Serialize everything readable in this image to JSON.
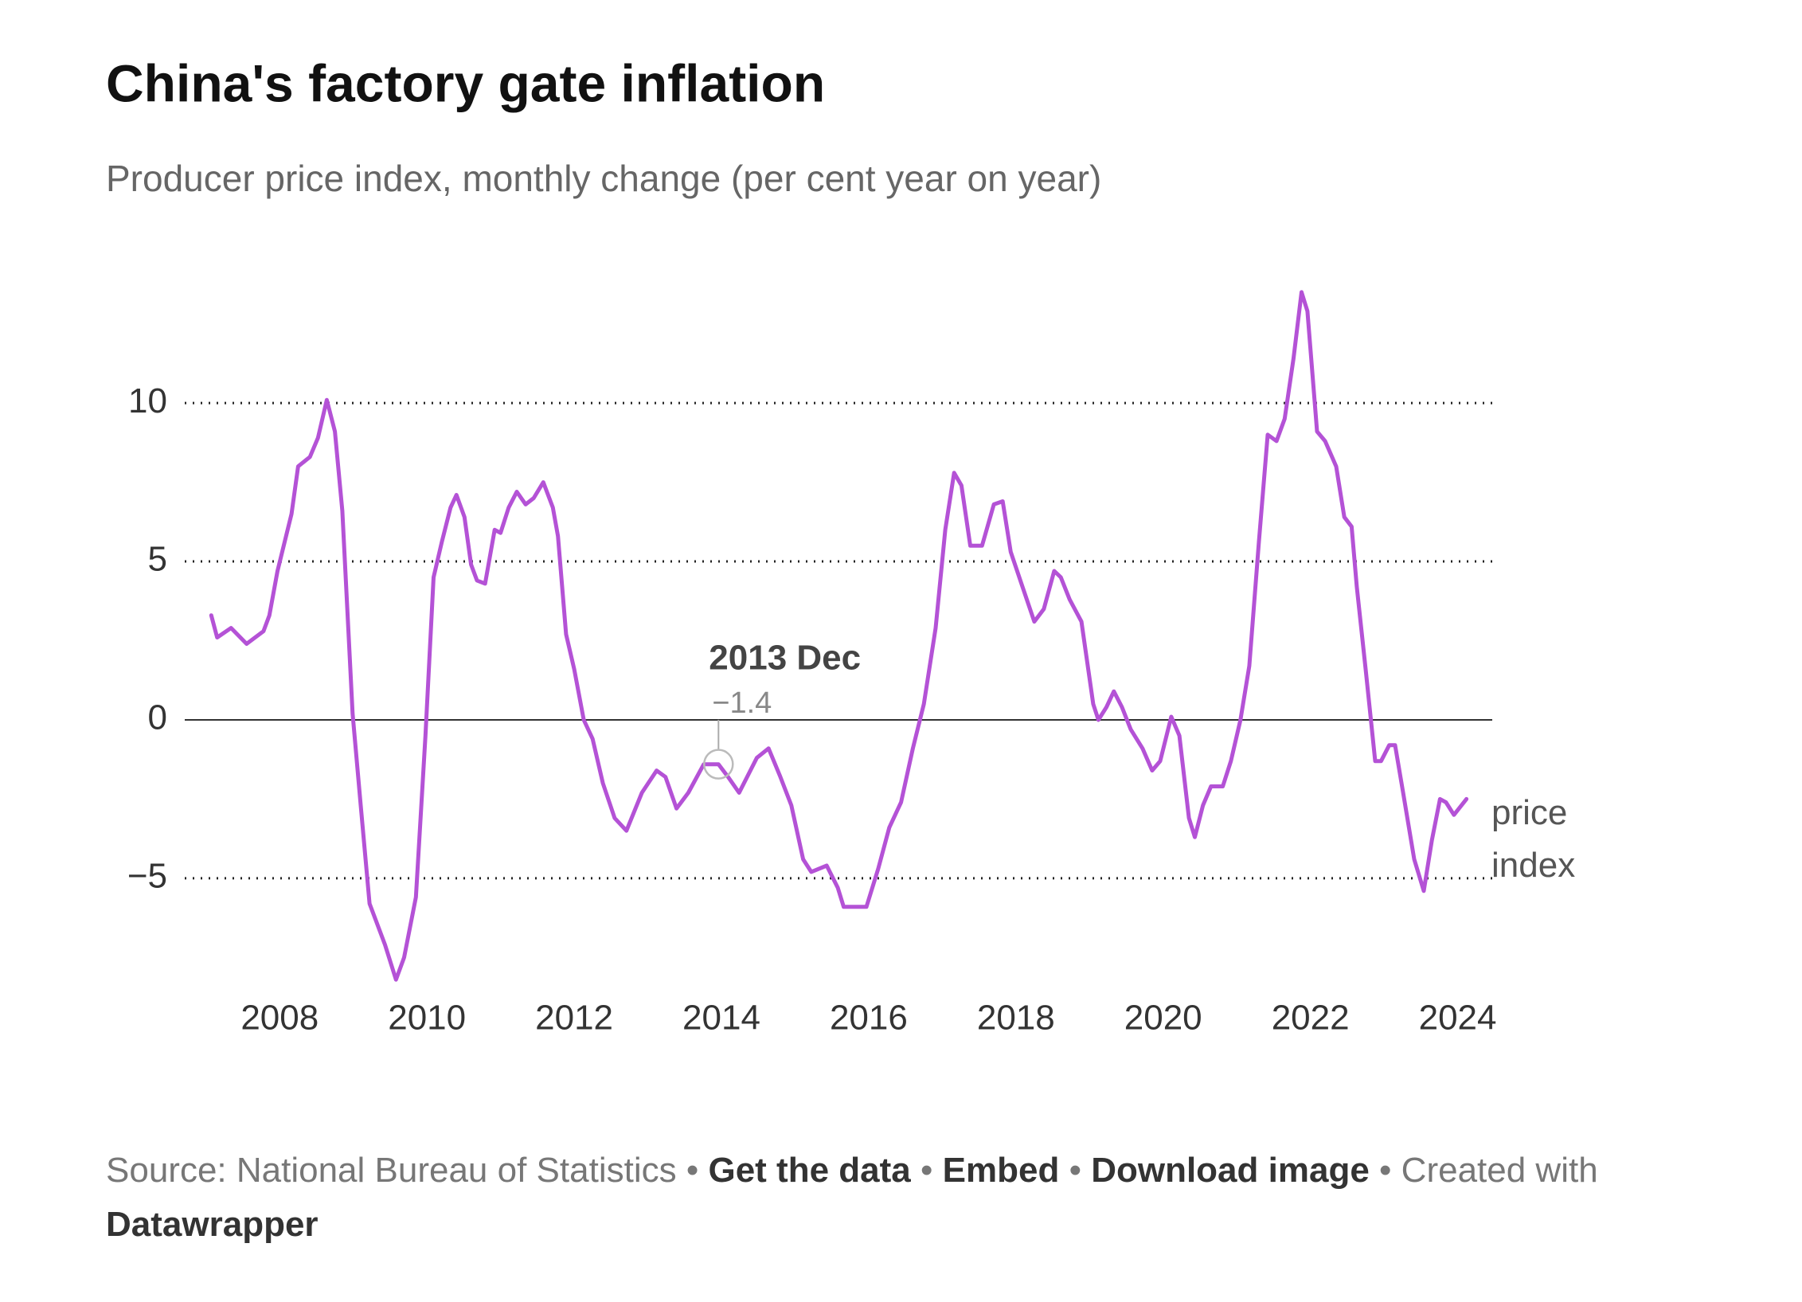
{
  "chart_data": {
    "type": "line",
    "title": "China's factory gate inflation",
    "subtitle": "Producer price index, monthly change (per cent year on year)",
    "x": [
      2007.07,
      2007.15,
      2007.34,
      2007.55,
      2007.78,
      2007.86,
      2007.97,
      2008.16,
      2008.25,
      2008.41,
      2008.52,
      2008.64,
      2008.75,
      2008.85,
      2008.99,
      2009.1,
      2009.22,
      2009.43,
      2009.58,
      2009.69,
      2009.85,
      2009.98,
      2010.09,
      2010.2,
      2010.32,
      2010.4,
      2010.51,
      2010.6,
      2010.68,
      2010.79,
      2010.92,
      2011.0,
      2011.11,
      2011.22,
      2011.34,
      2011.45,
      2011.58,
      2011.71,
      2011.78,
      2011.89,
      2012.0,
      2012.13,
      2012.25,
      2012.39,
      2012.55,
      2012.71,
      2012.92,
      2013.12,
      2013.24,
      2013.39,
      2013.55,
      2013.76,
      2013.96,
      2014.09,
      2014.24,
      2014.48,
      2014.64,
      2014.8,
      2014.95,
      2015.11,
      2015.22,
      2015.43,
      2015.58,
      2015.66,
      2015.97,
      2016.13,
      2016.28,
      2016.44,
      2016.6,
      2016.75,
      2016.91,
      2017.04,
      2017.16,
      2017.26,
      2017.38,
      2017.54,
      2017.7,
      2017.82,
      2017.93,
      2018.09,
      2018.25,
      2018.38,
      2018.52,
      2018.61,
      2018.73,
      2018.89,
      2019.05,
      2019.12,
      2019.23,
      2019.33,
      2019.44,
      2019.56,
      2019.72,
      2019.85,
      2019.96,
      2020.11,
      2020.22,
      2020.35,
      2020.43,
      2020.54,
      2020.65,
      2020.81,
      2020.92,
      2021.05,
      2021.17,
      2021.3,
      2021.42,
      2021.54,
      2021.65,
      2021.77,
      2021.88,
      2021.96,
      2022.09,
      2022.2,
      2022.35,
      2022.46,
      2022.56,
      2022.63,
      2022.75,
      2022.88,
      2022.96,
      2023.07,
      2023.15,
      2023.26,
      2023.41,
      2023.54,
      2023.65,
      2023.76,
      2023.84,
      2023.95,
      2024.12
    ],
    "series": [
      {
        "name": "price index",
        "color": "#b452d6",
        "values": [
          3.3,
          2.6,
          2.9,
          2.4,
          2.8,
          3.3,
          4.7,
          6.5,
          8.0,
          8.3,
          8.9,
          10.1,
          9.1,
          6.6,
          0.2,
          -2.7,
          -5.8,
          -7.1,
          -8.2,
          -7.5,
          -5.6,
          -0.5,
          4.5,
          5.6,
          6.7,
          7.1,
          6.4,
          4.9,
          4.4,
          4.3,
          6.0,
          5.9,
          6.7,
          7.2,
          6.8,
          7.0,
          7.5,
          6.7,
          5.8,
          2.7,
          1.6,
          0,
          -0.6,
          -2.0,
          -3.1,
          -3.5,
          -2.3,
          -1.6,
          -1.8,
          -2.8,
          -2.3,
          -1.4,
          -1.4,
          -1.8,
          -2.3,
          -1.2,
          -0.9,
          -1.8,
          -2.7,
          -4.4,
          -4.8,
          -4.6,
          -5.3,
          -5.9,
          -5.9,
          -4.7,
          -3.4,
          -2.6,
          -0.9,
          0.5,
          2.9,
          6.0,
          7.8,
          7.4,
          5.5,
          5.5,
          6.8,
          6.9,
          5.3,
          4.2,
          3.1,
          3.5,
          4.7,
          4.5,
          3.8,
          3.1,
          0.5,
          0,
          0.4,
          0.9,
          0.4,
          -0.3,
          -0.9,
          -1.6,
          -1.3,
          0.1,
          -0.5,
          -3.1,
          -3.7,
          -2.7,
          -2.1,
          -2.1,
          -1.3,
          0,
          1.7,
          5.6,
          9.0,
          8.8,
          9.5,
          11.4,
          13.5,
          12.9,
          9.1,
          8.8,
          8.0,
          6.4,
          6.1,
          4.2,
          1.6,
          -1.3,
          -1.3,
          -0.8,
          -0.8,
          -2.3,
          -4.4,
          -5.4,
          -3.8,
          -2.5,
          -2.6,
          -3.0,
          -2.5
        ]
      }
    ],
    "xlim": [
      2006.71,
      2024.47
    ],
    "xticks": [
      2008,
      2010,
      2012,
      2014,
      2016,
      2018,
      2020,
      2022,
      2024
    ],
    "ylim": [
      -9,
      14
    ],
    "yticks": [
      10,
      5,
      0,
      {
        "value": -5,
        "label": "−5"
      }
    ],
    "grid": true,
    "annotation": {
      "x": 2013.96,
      "label": "2013 Dec",
      "value": -1.4,
      "value_label": "−1.4"
    },
    "footer": {
      "source": "Source: National Bureau of Statistics",
      "separator": "•",
      "links": [
        "Get the data",
        "Embed",
        "Download image"
      ],
      "credit": "Created with",
      "credit_link": "Datawrapper"
    }
  }
}
